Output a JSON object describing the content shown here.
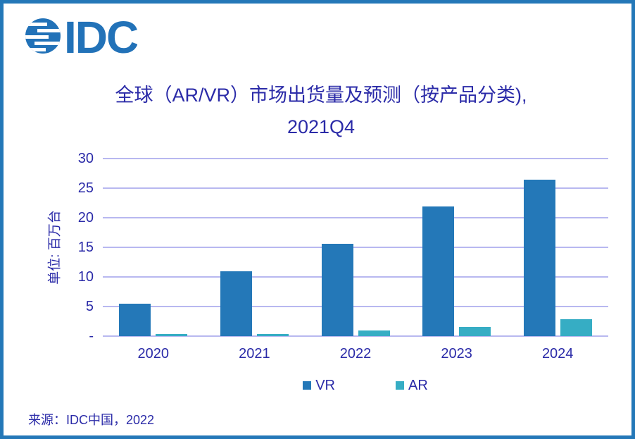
{
  "logo": {
    "text": "IDC",
    "brand_color": "#2272B8"
  },
  "title": {
    "line1": "全球（AR/VR）市场出货量及预测（按产品分类),",
    "line2": "2021Q4"
  },
  "source": {
    "text": "来源：IDC中国，2022"
  },
  "style": {
    "text_color": "#2B2BA8",
    "gridline_color": "#B8B8F0",
    "border_color": "#2478B8"
  },
  "chart_data": {
    "type": "bar",
    "title": "全球（AR/VR）市场出货量及预测（按产品分类), 2021Q4",
    "categories": [
      "2020",
      "2021",
      "2022",
      "2023",
      "2024"
    ],
    "series": [
      {
        "name": "VR",
        "color": "#2478B8",
        "values": [
          5.5,
          10.9,
          15.6,
          21.9,
          26.4
        ]
      },
      {
        "name": "AR",
        "color": "#36ADC4",
        "values": [
          0.3,
          0.4,
          1.0,
          1.6,
          2.9
        ]
      }
    ],
    "xlabel": "",
    "ylabel": "单位: 百万台",
    "ylim": [
      0,
      30
    ],
    "ytick_interval": 5,
    "yticks": [
      {
        "value": 0,
        "label": "-"
      },
      {
        "value": 5,
        "label": "5"
      },
      {
        "value": 10,
        "label": "10"
      },
      {
        "value": 15,
        "label": "15"
      },
      {
        "value": 20,
        "label": "20"
      },
      {
        "value": 25,
        "label": "25"
      },
      {
        "value": 30,
        "label": "30"
      }
    ],
    "grid": true,
    "legend_position": "bottom"
  }
}
